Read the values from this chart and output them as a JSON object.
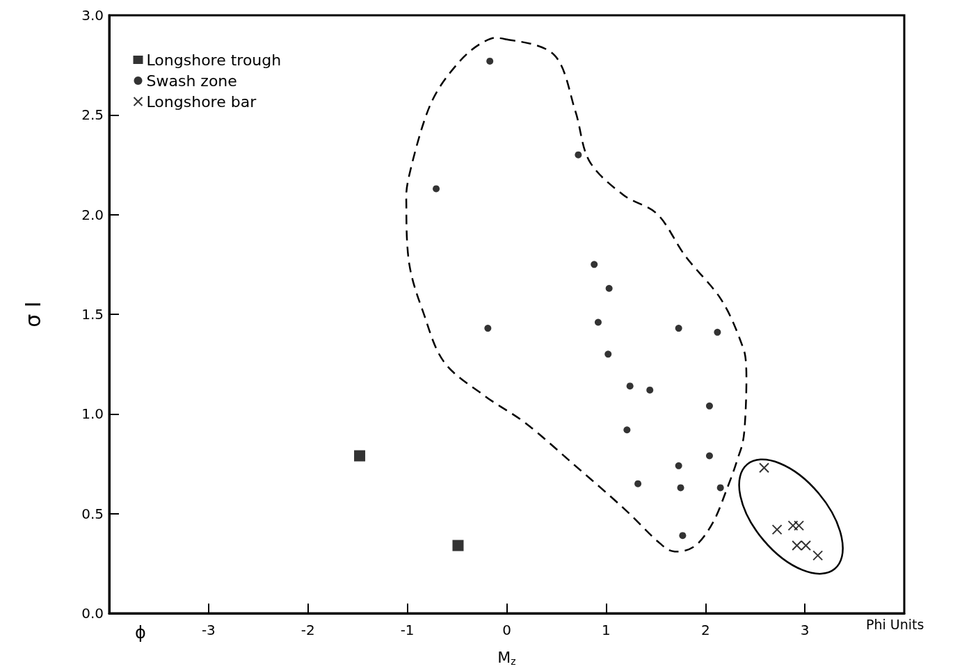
{
  "chart_data": {
    "type": "scatter",
    "xlabel": "M$_{z}$",
    "ylabel": "σ I",
    "xlim": [
      -4,
      4
    ],
    "xticks": [
      -3,
      -2,
      -1,
      0,
      1,
      2,
      3
    ],
    "ylim": [
      0,
      3
    ],
    "yticks": [
      {
        "value": 0,
        "label": "0.0"
      },
      0.5,
      {
        "value": 1,
        "label": "1.0"
      },
      1.5,
      {
        "value": 2,
        "label": "2.0"
      },
      2.5,
      {
        "value": 3,
        "label": "3.0"
      }
    ],
    "grid": false,
    "legend": "top left",
    "annotations": [
      "ϕ",
      "Phi Units"
    ],
    "series": [
      {
        "name": "Longshore trough",
        "color": "#000000",
        "marker": "square",
        "x": [
          -1.48,
          -0.49
        ],
        "values": [
          0.79,
          0.34
        ]
      },
      {
        "name": "Swash zone",
        "color": "#000000",
        "marker": "circle",
        "x": [
          -0.17,
          0.72,
          -0.71,
          0.88,
          1.03,
          -0.19,
          0.92,
          1.73,
          2.12,
          1.02,
          1.24,
          1.44,
          2.04,
          1.21,
          1.73,
          2.04,
          1.32,
          1.75,
          2.15,
          1.77
        ],
        "values": [
          2.77,
          2.3,
          2.13,
          1.75,
          1.63,
          1.43,
          1.46,
          1.43,
          1.41,
          1.3,
          1.14,
          1.12,
          1.04,
          0.92,
          0.74,
          0.79,
          0.65,
          0.63,
          0.63,
          0.39
        ]
      },
      {
        "name": "Longshore bar",
        "color": "#000000",
        "marker": "cross",
        "x": [
          2.59,
          2.72,
          2.88,
          2.94,
          2.92,
          3.01,
          3.13
        ],
        "values": [
          0.73,
          0.42,
          0.44,
          0.44,
          0.34,
          0.34,
          0.29
        ]
      }
    ]
  }
}
